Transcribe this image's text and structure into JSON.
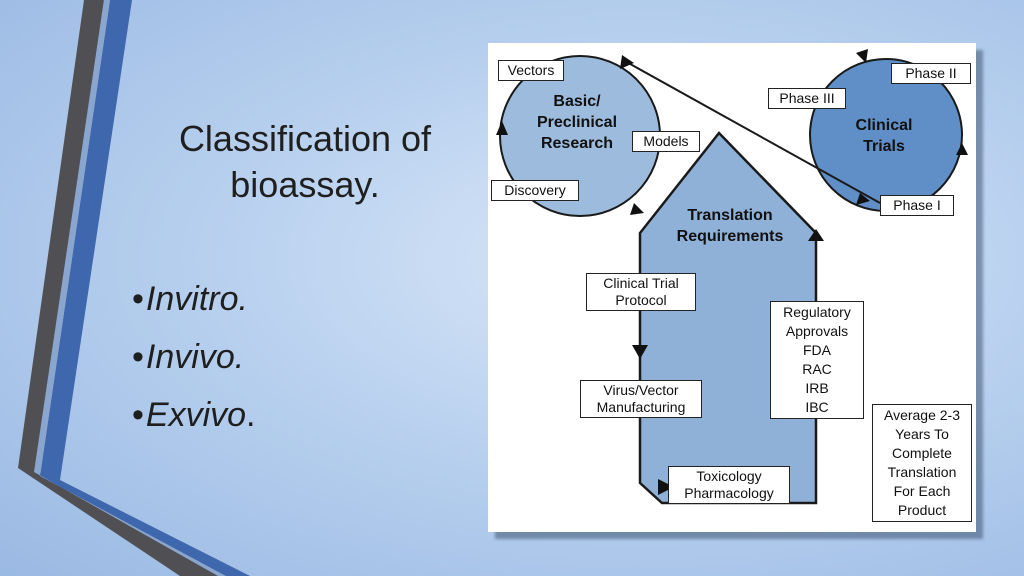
{
  "slide": {
    "title_line1": "Classification of",
    "title_line2": "bioassay.",
    "bullet_char": "•",
    "bullets": [
      {
        "text": "Invitro.",
        "suffix": ""
      },
      {
        "text": "Invivo.",
        "suffix": ""
      },
      {
        "text": "Exvivo",
        "suffix": "."
      }
    ]
  },
  "diagram": {
    "basic_research_line1": "Basic/",
    "basic_research_line2": "Preclinical",
    "basic_research_line3": "Research",
    "clinical_trials_line1": "Clinical",
    "clinical_trials_line2": "Trials",
    "translation_line1": "Translation",
    "translation_line2": "Requirements",
    "vectors": "Vectors",
    "models": "Models",
    "discovery": "Discovery",
    "phase3": "Phase III",
    "phase2": "Phase II",
    "phase1": "Phase I",
    "clinical_trial_protocol_line1": "Clinical Trial",
    "clinical_trial_protocol_line2": "Protocol",
    "virus_line1": "Virus/Vector",
    "virus_line2": "Manufacturing",
    "toxicology_line1": "Toxicology",
    "toxicology_line2": "Pharmacology",
    "regulatory_lines": [
      "Regulatory",
      "Approvals",
      "FDA",
      "RAC",
      "IRB",
      "IBC"
    ],
    "average_lines": [
      "Average 2-3",
      "Years To",
      "Complete",
      "Translation",
      "For Each",
      "Product"
    ]
  },
  "colors": {
    "circle_left": "#9dbbdc",
    "circle_right": "#5f8fc6",
    "arrow_fill": "#8fb0d7",
    "deco_dark": "#4a4a4e",
    "deco_blue": "#3f67ad"
  }
}
